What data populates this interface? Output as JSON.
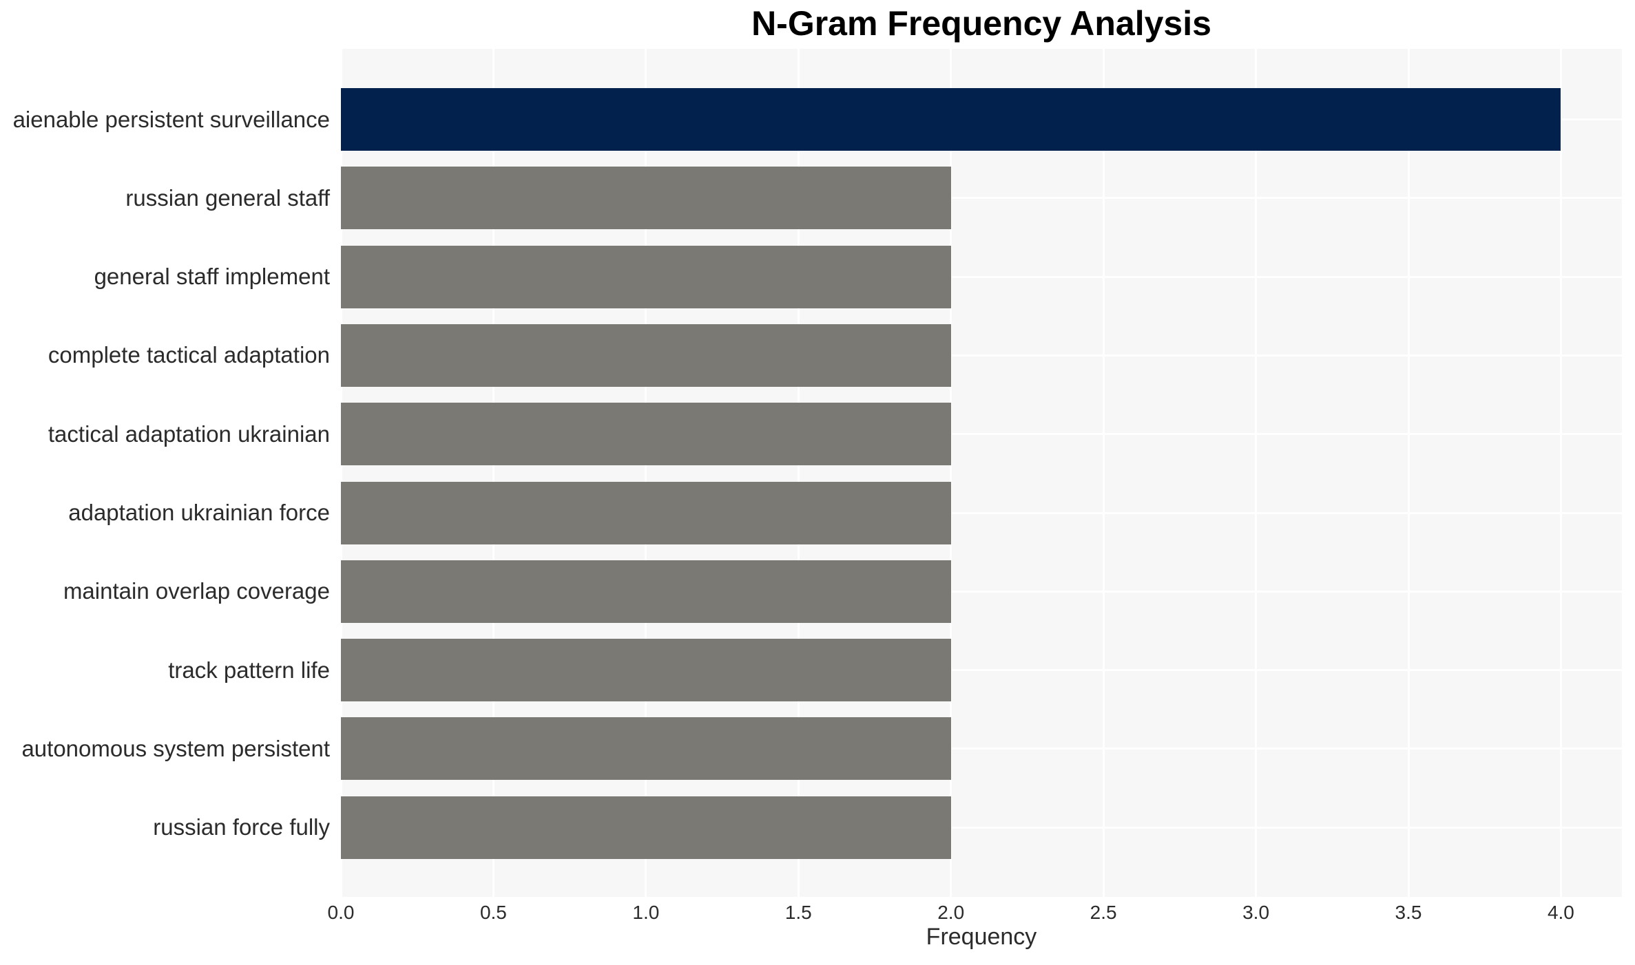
{
  "chart_data": {
    "type": "bar",
    "orientation": "horizontal",
    "title": "N-Gram Frequency Analysis",
    "xlabel": "Frequency",
    "ylabel": "",
    "categories": [
      "aienable persistent surveillance",
      "russian general staff",
      "general staff implement",
      "complete tactical adaptation",
      "tactical adaptation ukrainian",
      "adaptation ukrainian force",
      "maintain overlap coverage",
      "track pattern life",
      "autonomous system persistent",
      "russian force fully"
    ],
    "values": [
      4,
      2,
      2,
      2,
      2,
      2,
      2,
      2,
      2,
      2
    ],
    "bar_colors": [
      "#02224d",
      "#7b7974",
      "#7b7974",
      "#7b7974",
      "#7b7974",
      "#7b7974",
      "#7b7974",
      "#7b7974",
      "#7b7974",
      "#7b7974"
    ],
    "xlim": [
      0,
      4.2
    ],
    "x_ticks": [
      0.0,
      0.5,
      1.0,
      1.5,
      2.0,
      2.5,
      3.0,
      3.5,
      4.0
    ],
    "x_tick_labels": [
      "0.0",
      "0.5",
      "1.0",
      "1.5",
      "2.0",
      "2.5",
      "3.0",
      "3.5",
      "4.0"
    ],
    "grid": "on",
    "legend": "none",
    "panel_background": "#f7f7f7",
    "gridline_color": "#ffffff",
    "highlight_color": "#02224d",
    "default_bar_color": "#7b7974"
  }
}
